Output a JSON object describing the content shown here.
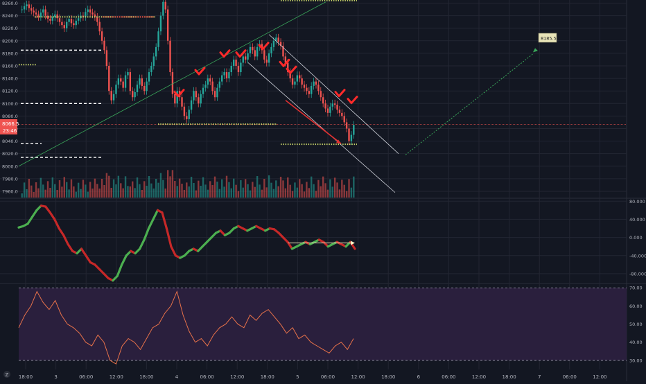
{
  "colors": {
    "background": "#131722",
    "grid": "#232632",
    "up": "#26a69a",
    "down": "#ef5350",
    "axis_text": "#b2b5be",
    "price_badge": "#ef5350",
    "rsi_band": "#2a1f3d",
    "rsi_line": "#e8724a",
    "trend_green": "#3aa65a",
    "channel": "#d1d4dc",
    "yellow_dots": "#c8d46a",
    "white_dash": "#ffffff"
  },
  "price_axis": {
    "ticks": [
      "8260.0",
      "8240.0",
      "8220.0",
      "8200.0",
      "8180.0",
      "8160.0",
      "8140.0",
      "8120.0",
      "8100.0",
      "8080.0",
      "8060.0",
      "8040.0",
      "8020.0",
      "8000.0",
      "7980.0",
      "7960.0"
    ],
    "last_price_label": "8066.5",
    "countdown_label": "23:46"
  },
  "osc_axis": {
    "ticks": [
      "80.000",
      "40.000",
      "0.000",
      "-40.000",
      "-80.000"
    ]
  },
  "rsi_axis": {
    "ticks": [
      "70.00",
      "60.00",
      "50.00",
      "40.00",
      "30.00"
    ]
  },
  "time_axis": {
    "ticks": [
      "18:00",
      "3",
      "06:00",
      "12:00",
      "18:00",
      "4",
      "06:00",
      "12:00",
      "18:00",
      "5",
      "06:00",
      "12:00",
      "18:00",
      "6",
      "06:00",
      "12:00",
      "18:00",
      "7",
      "06:00",
      "12:00"
    ]
  },
  "annotations": {
    "target_label": "8185.5",
    "tv_badge": "Z"
  },
  "chart_data": [
    {
      "type": "candlestick",
      "title": "",
      "ylim": [
        7950,
        8265
      ],
      "last_price": 8066.5,
      "close_series": [
        8250,
        8255,
        8258,
        8252,
        8248,
        8245,
        8242,
        8238,
        8245,
        8250,
        8240,
        8235,
        8232,
        8238,
        8242,
        8236,
        8230,
        8225,
        8220,
        8230,
        8235,
        8228,
        8225,
        8232,
        8236,
        8240,
        8238,
        8246,
        8250,
        8245,
        8242,
        8238,
        8230,
        8215,
        8200,
        8185,
        8160,
        8120,
        8105,
        8115,
        8130,
        8140,
        8135,
        8125,
        8145,
        8150,
        8120,
        8110,
        8118,
        8130,
        8140,
        8128,
        8120,
        8135,
        8150,
        8160,
        8175,
        8190,
        8215,
        8240,
        8262,
        8250,
        8200,
        8150,
        8115,
        8100,
        8120,
        8110,
        8095,
        8080,
        8075,
        8090,
        8105,
        8120,
        8110,
        8100,
        8115,
        8125,
        8130,
        8140,
        8135,
        8120,
        8110,
        8125,
        8135,
        8145,
        8150,
        8140,
        8150,
        8160,
        8170,
        8160,
        8150,
        8165,
        8175,
        8170,
        8180,
        8190,
        8185,
        8175,
        8190,
        8195,
        8185,
        8170,
        8165,
        8180,
        8190,
        8200,
        8205,
        8198,
        8192,
        8175,
        8165,
        8150,
        8140,
        8130,
        8135,
        8145,
        8140,
        8130,
        8125,
        8120,
        8115,
        8128,
        8135,
        8130,
        8120,
        8110,
        8100,
        8092,
        8085,
        8095,
        8100,
        8098,
        8090,
        8085,
        8080,
        8070,
        8060,
        8040,
        8050,
        8066
      ],
      "volume_note": "volume bars shown at chart bottom"
    },
    {
      "type": "line",
      "title": "",
      "ylim": [
        -100,
        85
      ],
      "series": [
        {
          "values": [
            22,
            25,
            30,
            45,
            60,
            70,
            68,
            55,
            40,
            20,
            5,
            -15,
            -30,
            -35,
            -25,
            -40,
            -55,
            -60,
            -70,
            -80,
            -90,
            -95,
            -85,
            -60,
            -40,
            -30,
            -35,
            -25,
            -5,
            20,
            40,
            60,
            55,
            20,
            -20,
            -40,
            -45,
            -40,
            -30,
            -25,
            -30,
            -20,
            -10,
            0,
            10,
            15,
            5,
            10,
            20,
            25,
            20,
            15,
            20,
            25,
            20,
            15,
            20,
            18,
            10,
            0,
            -10,
            -25,
            -20,
            -15,
            -10,
            -15,
            -10,
            -5,
            -10,
            -20,
            -15,
            -10,
            -15,
            -20,
            -10,
            -25
          ]
        }
      ]
    },
    {
      "type": "line",
      "title": "",
      "ylim": [
        25,
        72
      ],
      "series": [
        {
          "values": [
            48,
            55,
            60,
            68,
            62,
            58,
            63,
            55,
            50,
            48,
            45,
            40,
            38,
            44,
            40,
            30,
            28,
            38,
            42,
            40,
            36,
            42,
            48,
            50,
            56,
            60,
            68,
            55,
            46,
            40,
            42,
            38,
            44,
            48,
            50,
            54,
            50,
            48,
            55,
            52,
            56,
            58,
            54,
            50,
            45,
            48,
            42,
            44,
            40,
            38,
            36,
            34,
            38,
            40,
            36,
            42
          ]
        }
      ]
    }
  ]
}
